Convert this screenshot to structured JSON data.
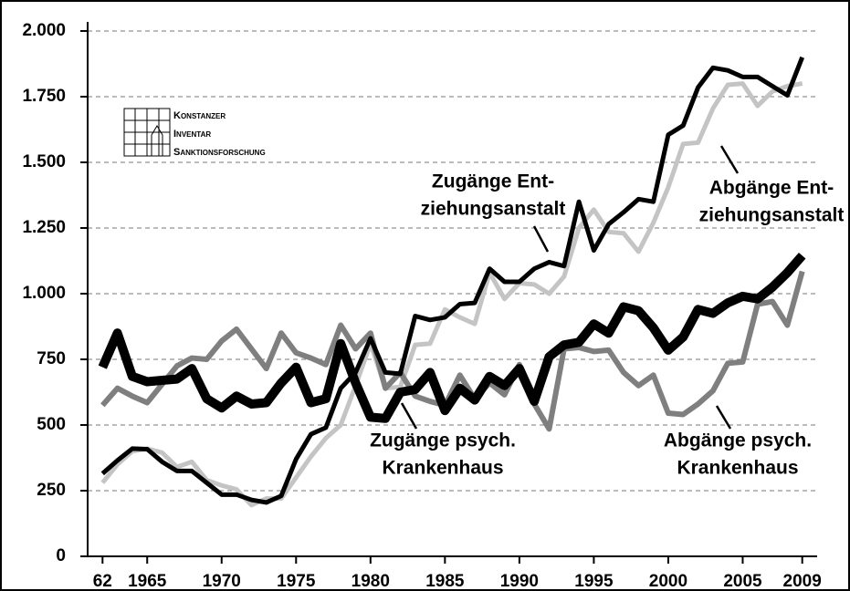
{
  "chart_data": {
    "type": "line",
    "x": [
      1962,
      1963,
      1964,
      1965,
      1966,
      1967,
      1968,
      1969,
      1970,
      1971,
      1972,
      1973,
      1974,
      1975,
      1976,
      1977,
      1978,
      1979,
      1980,
      1981,
      1982,
      1983,
      1984,
      1985,
      1986,
      1987,
      1988,
      1989,
      1990,
      1991,
      1992,
      1993,
      1994,
      1995,
      1996,
      1997,
      1998,
      1999,
      2000,
      2001,
      2002,
      2003,
      2004,
      2005,
      2006,
      2007,
      2008,
      2009
    ],
    "series": [
      {
        "color": "#c4c4c4",
        "width": 5,
        "values": [
          280,
          350,
          400,
          410,
          395,
          340,
          360,
          290,
          270,
          255,
          195,
          220,
          220,
          300,
          380,
          450,
          500,
          650,
          810,
          640,
          645,
          805,
          810,
          940,
          910,
          885,
          1080,
          980,
          1040,
          1035,
          1000,
          1065,
          1250,
          1320,
          1235,
          1230,
          1160,
          1270,
          1405,
          1570,
          1575,
          1705,
          1795,
          1800,
          1715,
          1770,
          1790,
          1800
        ]
      },
      {
        "color": "#7f7f7f",
        "width": 6,
        "values": [
          575,
          640,
          610,
          585,
          655,
          725,
          755,
          750,
          820,
          865,
          790,
          715,
          850,
          775,
          755,
          730,
          880,
          790,
          850,
          640,
          700,
          610,
          590,
          575,
          690,
          600,
          660,
          615,
          730,
          580,
          485,
          790,
          795,
          780,
          785,
          700,
          650,
          690,
          545,
          540,
          580,
          630,
          735,
          740,
          960,
          970,
          880,
          1085
        ]
      },
      {
        "color": "#000000",
        "width": 5,
        "values": [
          315,
          365,
          410,
          408,
          360,
          325,
          325,
          280,
          235,
          235,
          215,
          205,
          230,
          370,
          465,
          490,
          640,
          700,
          830,
          700,
          695,
          915,
          900,
          910,
          960,
          965,
          1095,
          1045,
          1045,
          1095,
          1120,
          1105,
          1350,
          1165,
          1265,
          1310,
          1360,
          1350,
          1605,
          1640,
          1785,
          1860,
          1850,
          1825,
          1825,
          1790,
          1755,
          1900
        ]
      },
      {
        "color": "#000000",
        "width": 10,
        "values": [
          720,
          850,
          685,
          665,
          670,
          675,
          715,
          600,
          565,
          610,
          580,
          585,
          660,
          720,
          585,
          600,
          810,
          660,
          530,
          525,
          625,
          635,
          700,
          555,
          640,
          595,
          685,
          650,
          715,
          590,
          760,
          805,
          815,
          885,
          850,
          950,
          935,
          870,
          785,
          835,
          940,
          925,
          965,
          990,
          980,
          1025,
          1080,
          1145
        ]
      }
    ],
    "xlim": [
      1961,
      2010
    ],
    "xticks": [
      {
        "value": 1962,
        "label": "62"
      },
      1965,
      1970,
      1975,
      1980,
      1985,
      1990,
      1995,
      2000,
      2005,
      2009
    ],
    "ylim": [
      0,
      2000
    ],
    "yticks": [
      0,
      250,
      500,
      750,
      {
        "value": 1000,
        "label": "1.000"
      },
      {
        "value": 1250,
        "label": "1.250"
      },
      {
        "value": 1500,
        "label": "1.500"
      },
      {
        "value": 1750,
        "label": "1.750"
      },
      {
        "value": 2000,
        "label": "2.000"
      }
    ],
    "grid": true,
    "annotations": [
      {
        "lines": [
          "Zugänge Ent-",
          "ziehungsanstalt"
        ]
      },
      {
        "lines": [
          "Abgänge Ent-",
          "ziehungsanstalt"
        ]
      },
      {
        "lines": [
          "Zugänge psych.",
          "Krankenhaus"
        ]
      },
      {
        "lines": [
          "Abgänge psych.",
          "Krankenhaus"
        ]
      }
    ],
    "logo": [
      "Konstanzer",
      "Inventar",
      "Sanktionsforschung"
    ]
  }
}
